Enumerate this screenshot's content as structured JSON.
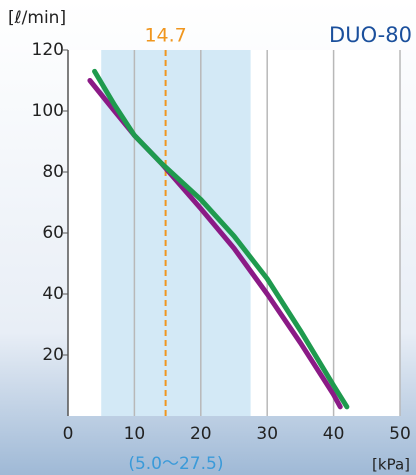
{
  "chart_data": {
    "type": "line",
    "title": "DUO-80",
    "y_label": "[ℓ/min]",
    "x_label": "[kPa]",
    "xlim": [
      0,
      50
    ],
    "ylim": [
      0,
      120
    ],
    "xticks": [
      0,
      10,
      20,
      30,
      40,
      50
    ],
    "yticks": [
      20,
      40,
      60,
      80,
      100,
      120
    ],
    "grid": true,
    "marker_line": {
      "value": 14.7,
      "color": "#f0961e"
    },
    "shade": {
      "from": 5.0,
      "to": 27.5,
      "label": "(5.0〜27.5)",
      "color": "#d3e9f6"
    },
    "series": [
      {
        "color": "#8b1a86",
        "x": [
          3.3,
          7,
          10,
          14,
          20,
          25,
          30,
          35,
          40,
          41
        ],
        "values": [
          110,
          100,
          92,
          83,
          68,
          55,
          40,
          24,
          7,
          3
        ]
      },
      {
        "color": "#1f9a4e",
        "x": [
          4,
          7,
          10,
          14,
          20,
          25,
          30,
          35,
          40,
          42
        ],
        "values": [
          113,
          102,
          92,
          83,
          71,
          59,
          45,
          28,
          10,
          3
        ]
      }
    ]
  }
}
